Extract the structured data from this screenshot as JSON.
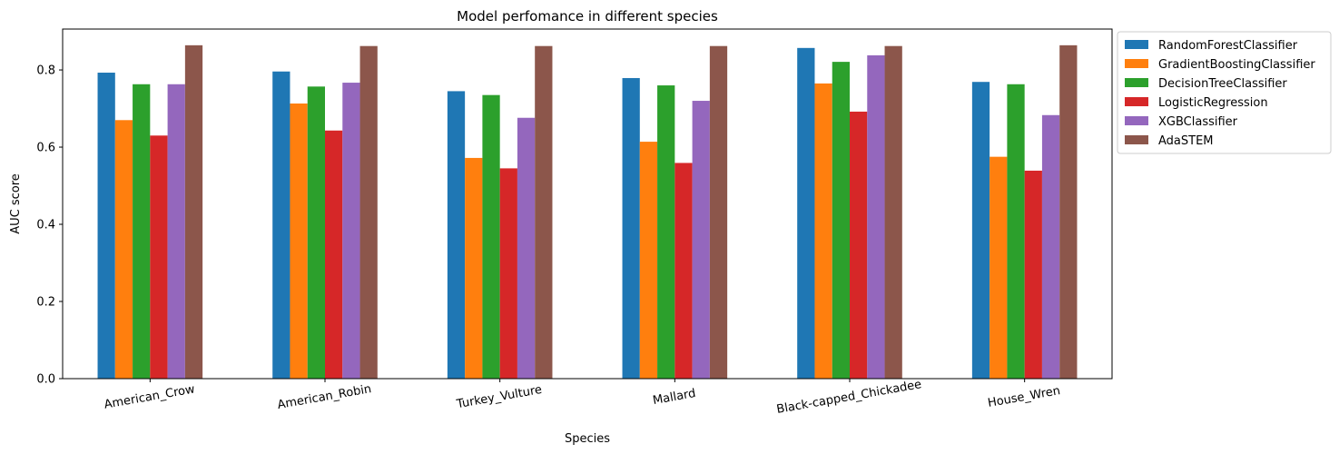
{
  "chart_data": {
    "type": "bar",
    "title": "Model perfomance in different species",
    "xlabel": "Species",
    "ylabel": "AUC score",
    "ylim": [
      0,
      0.906
    ],
    "yticks": [
      0.0,
      0.2,
      0.4,
      0.6,
      0.8
    ],
    "ytick_labels": [
      "0.0",
      "0.2",
      "0.4",
      "0.6",
      "0.8"
    ],
    "grid": false,
    "legend_position": "outside-top-right",
    "categories": [
      "American_Crow",
      "American_Robin",
      "Turkey_Vulture",
      "Mallard",
      "Black-capped_Chickadee",
      "House_Wren"
    ],
    "series": [
      {
        "name": "RandomForestClassifier",
        "color": "#1f77b4",
        "values": [
          0.793,
          0.796,
          0.745,
          0.779,
          0.857,
          0.769
        ]
      },
      {
        "name": "GradientBoostingClassifier",
        "color": "#ff7f0e",
        "values": [
          0.67,
          0.713,
          0.572,
          0.614,
          0.765,
          0.575
        ]
      },
      {
        "name": "DecisionTreeClassifier",
        "color": "#2ca02c",
        "values": [
          0.763,
          0.757,
          0.735,
          0.76,
          0.821,
          0.763
        ]
      },
      {
        "name": "LogisticRegression",
        "color": "#d62728",
        "values": [
          0.63,
          0.643,
          0.545,
          0.559,
          0.692,
          0.539
        ]
      },
      {
        "name": "XGBClassifier",
        "color": "#9467bd",
        "values": [
          0.763,
          0.767,
          0.676,
          0.72,
          0.838,
          0.683
        ]
      },
      {
        "name": "AdaSTEM",
        "color": "#8c564b",
        "values": [
          0.864,
          0.862,
          0.862,
          0.862,
          0.862,
          0.864
        ]
      }
    ]
  }
}
